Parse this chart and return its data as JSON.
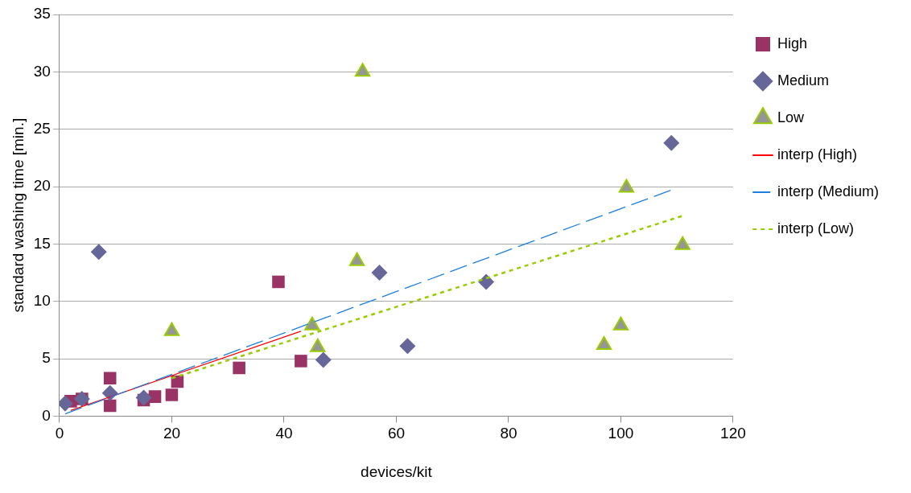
{
  "chart_data": {
    "type": "scatter",
    "xlabel": "devices/kit",
    "ylabel": "standard washing time [min.]",
    "xlim": [
      0,
      120
    ],
    "xticks": [
      0,
      20,
      40,
      60,
      80,
      100,
      120
    ],
    "ylim": [
      0,
      35
    ],
    "yticks": [
      0,
      5,
      10,
      15,
      20,
      25,
      30,
      35
    ],
    "grid": "y",
    "legend": "right",
    "series": [
      {
        "name": "High",
        "type": "scatter",
        "marker": "square",
        "color": "#993366",
        "x": [
          2,
          4,
          9,
          9,
          15,
          17,
          20,
          21,
          32,
          39,
          43
        ],
        "values": [
          1.3,
          1.5,
          3.3,
          0.9,
          1.4,
          1.7,
          1.85,
          3,
          4.2,
          11.7,
          4.8
        ]
      },
      {
        "name": "Medium",
        "type": "scatter",
        "marker": "diamond",
        "color": "#666699",
        "x": [
          1,
          4,
          7,
          9,
          15,
          47,
          57,
          62,
          76,
          109
        ],
        "values": [
          1.1,
          1.5,
          14.3,
          2.0,
          1.6,
          4.9,
          12.5,
          6.1,
          11.7,
          23.8
        ]
      },
      {
        "name": "Low",
        "type": "scatter",
        "marker": "triangle",
        "color": "#969696",
        "x": [
          20,
          45,
          46,
          53,
          54,
          97,
          100,
          101,
          111
        ],
        "values": [
          7.4,
          7.9,
          6.0,
          13.5,
          30,
          6.2,
          7.9,
          19.9,
          14.9
        ]
      },
      {
        "name": "interp (High)",
        "type": "line",
        "marker": "none",
        "line_style": "solid",
        "color": "#ff0000",
        "x": [
          2,
          43
        ],
        "values": [
          0.5,
          7.4
        ]
      },
      {
        "name": "interp (Medium)",
        "type": "line",
        "marker": "none",
        "line_style": "dashed",
        "color": "#1f7fe0",
        "x": [
          1,
          109
        ],
        "values": [
          0.2,
          19.7
        ]
      },
      {
        "name": "interp (Low)",
        "type": "line",
        "marker": "none",
        "line_style": "dotted",
        "color": "#99cc00",
        "x": [
          20,
          111
        ],
        "values": [
          3.3,
          17.45
        ]
      }
    ]
  }
}
